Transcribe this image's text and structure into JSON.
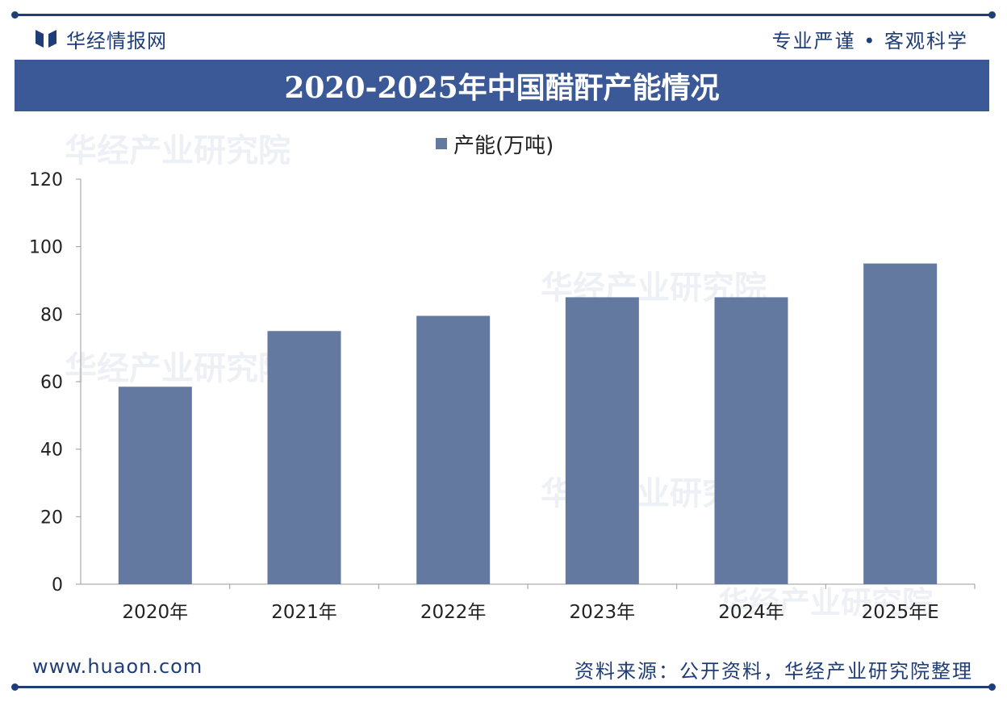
{
  "header": {
    "brand_name": "华经情报网",
    "slogan": "专业严谨 • 客观科学"
  },
  "watermark": {
    "text": "华经产业研究院",
    "url": "www.huaon.com"
  },
  "colors": {
    "primary": "#1f3e78",
    "title_bar": "#3b5996",
    "bar": "#64799f"
  },
  "chart_data": {
    "type": "bar",
    "title": "2020-2025年中国醋酐产能情况",
    "categories": [
      "2020年",
      "2021年",
      "2022年",
      "2023年",
      "2024年",
      "2025年E"
    ],
    "series": [
      {
        "name": "产能(万吨)",
        "values": [
          58.5,
          75,
          79.5,
          85,
          85,
          95
        ]
      }
    ],
    "xlabel": "",
    "ylabel": "",
    "ylim": [
      0,
      120
    ],
    "yticks": [
      0,
      20,
      40,
      60,
      80,
      100,
      120
    ],
    "legend_position": "top-center",
    "grid": false
  },
  "footer": {
    "url": "www.huaon.com",
    "source": "资料来源：公开资料，华经产业研究院整理"
  }
}
